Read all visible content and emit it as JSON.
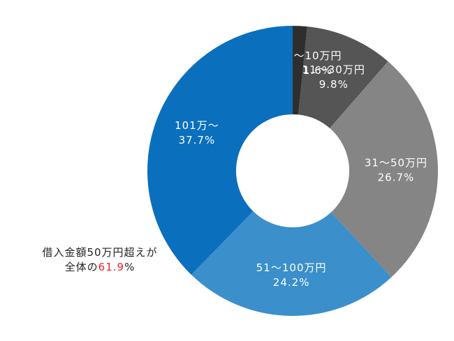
{
  "chart_data": {
    "type": "pie",
    "donut": true,
    "segments": [
      {
        "label": "～10万円",
        "value": 1.6,
        "value_label": "1.6%",
        "color": "#2e2e2e"
      },
      {
        "label": "11～30万円",
        "value": 9.8,
        "value_label": "9.8%",
        "color": "#555555"
      },
      {
        "label": "31～50万円",
        "value": 26.7,
        "value_label": "26.7%",
        "color": "#858585"
      },
      {
        "label": "51～100万円",
        "value": 24.2,
        "value_label": "24.2%",
        "color": "#3b8fcb"
      },
      {
        "label": "101万～",
        "value": 37.7,
        "value_label": "37.7%",
        "color": "#0a6fbd"
      }
    ],
    "annotation": {
      "line1": "借入金額50万円超えが",
      "line2_prefix": "全体の",
      "line2_value": "61.9",
      "line2_suffix": "%",
      "highlight_color": "#e8242c"
    }
  }
}
